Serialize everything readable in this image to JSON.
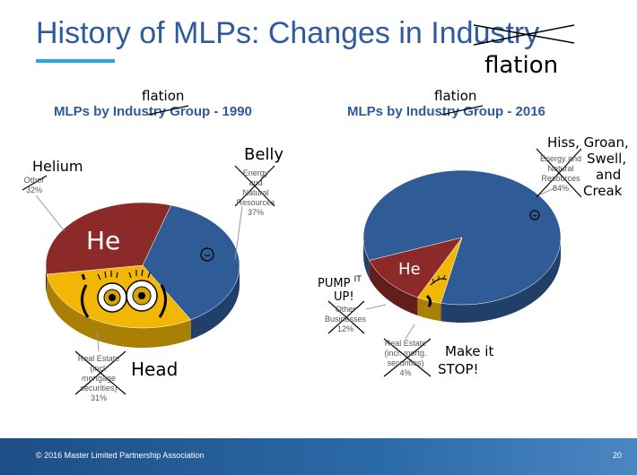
{
  "slide": {
    "title_prefix": "History of MLPs:  Changes in Ind",
    "title_struck": "ustry",
    "title_handwritten": "flation",
    "footer": "© 2016 Master Limited Partnership Association",
    "page_number": "20"
  },
  "colors": {
    "blue": "#2f5b96",
    "red": "#8c2a2a",
    "gold": "#f2b705",
    "title": "#2d5b9c"
  },
  "chart_data": [
    {
      "type": "pie",
      "title_prefix": "MLPs by Indu",
      "title_struck": "stry",
      "title_suffix": " Group - 1990",
      "title_handwritten": "flation",
      "slices": [
        {
          "label": "Energy and Natural Resources",
          "value": 37,
          "pct": "37%",
          "color": "#2f5b96"
        },
        {
          "label": "Real Estate (incl. mortgage securities)",
          "value": 31,
          "pct": "31%",
          "color": "#f2b705"
        },
        {
          "label": "Other",
          "value": 32,
          "pct": "32%",
          "color": "#8c2a2a"
        }
      ],
      "labels": {
        "energy": [
          "Energy and",
          "Natural",
          "Resources",
          "37%"
        ],
        "real_estate": [
          "Real Estate",
          "(incl.",
          "mortgage",
          "securities)",
          "31%"
        ],
        "other": [
          "Other",
          "32%"
        ]
      },
      "annotations": {
        "other": "Helium",
        "energy": "Belly",
        "real_estate": "Head",
        "on_slice": "He"
      }
    },
    {
      "type": "pie",
      "title_prefix": "MLPs by Indu",
      "title_struck": "stry",
      "title_suffix": " Group - 2016",
      "title_handwritten": "flation",
      "slices": [
        {
          "label": "Energy and Natural Resources",
          "value": 84,
          "pct": "84%",
          "color": "#2f5b96"
        },
        {
          "label": "Real Estate (incl. mortg. securities)",
          "value": 4,
          "pct": "4%",
          "color": "#f2b705"
        },
        {
          "label": "Other Businesses",
          "value": 12,
          "pct": "12%",
          "color": "#8c2a2a"
        }
      ],
      "labels": {
        "energy": [
          "Energy and",
          "Natural",
          "Resources",
          "84%"
        ],
        "real_estate": [
          "Real Estate",
          "(incl. mortg.",
          "securities)",
          "4%"
        ],
        "other": [
          "Other",
          "Businesses",
          "12%"
        ]
      },
      "annotations": {
        "energy": [
          "Hiss, Groan,",
          "Swell,",
          "and",
          "Creak"
        ],
        "other": [
          "PUMP",
          "IT",
          "UP!"
        ],
        "real_estate": [
          "Make it",
          "STOP!"
        ],
        "on_slice": "He"
      }
    }
  ]
}
